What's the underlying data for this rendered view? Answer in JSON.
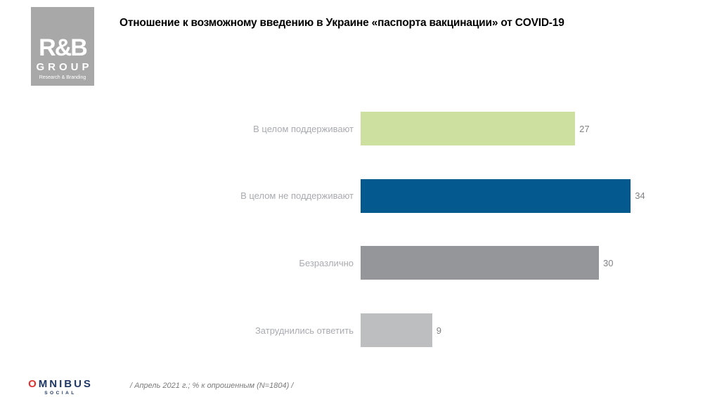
{
  "logos": {
    "rb_group": {
      "line1": "R&B",
      "line2": "GROUP",
      "line3": "Research & Branding",
      "bg_color": "#a8a8a8"
    },
    "omnibus": {
      "o": "O",
      "rest": "MNIBUS",
      "sub": "SOCIAL",
      "o_color": "#e03131",
      "text_color": "#1f3864"
    }
  },
  "footer": {
    "note": "/ Апрель 2021 г.; % к опрошенным  (N=1804) /"
  },
  "chart_data": {
    "type": "bar",
    "orientation": "horizontal",
    "title": "Отношение к возможному введению в Украине «паспорта вакцинации» от COVID-19",
    "categories": [
      "В целом поддерживают",
      "В целом не поддерживают",
      "Безразлично",
      "Затруднились  ответить"
    ],
    "values": [
      27,
      34,
      30,
      9
    ],
    "colors": [
      "#cde0a0",
      "#04598f",
      "#95969a",
      "#bdbec0"
    ],
    "value_labels": true,
    "xlabel": "",
    "ylabel": "",
    "xlim": [
      0,
      40
    ],
    "grid": false,
    "legend": false,
    "units": "% к опрошенным"
  }
}
